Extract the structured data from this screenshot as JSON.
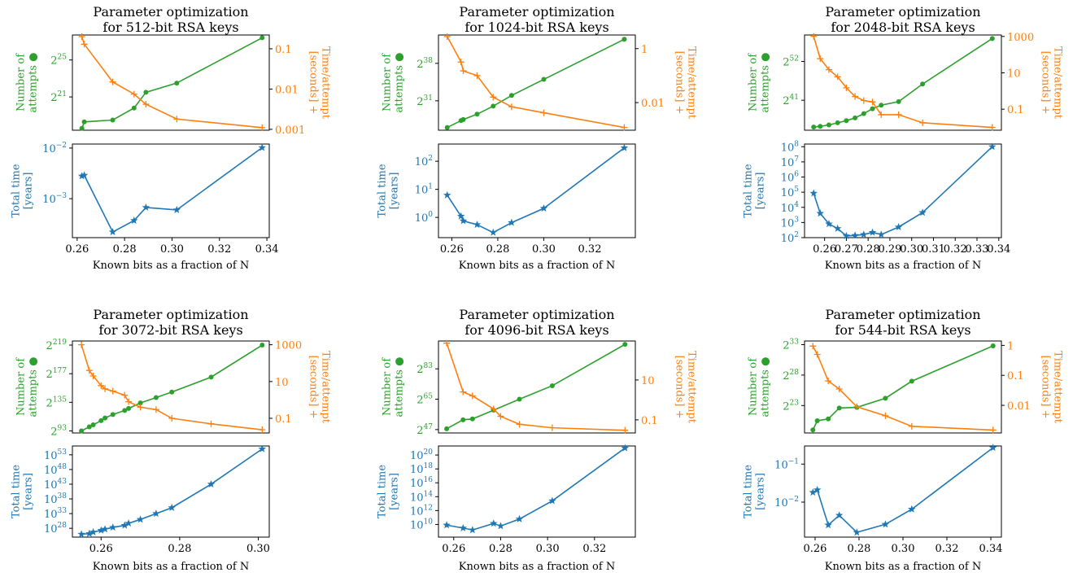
{
  "colors": {
    "attempts": "#2ca02c",
    "time_per_attempt": "#ff7f0e",
    "total_time": "#1f77b4",
    "axis": "#000000"
  },
  "chart_data": [
    {
      "type": "line",
      "title": "Parameter optimization\nfor 512-bit RSA keys",
      "xlabel": "Known bits as a fraction of N",
      "xlim": [
        0.258,
        0.341
      ],
      "xticks": [
        0.26,
        0.28,
        0.3,
        0.32,
        0.34
      ],
      "xtick_labels": [
        "0.26",
        "0.28",
        "0.30",
        "0.32",
        "0.34"
      ],
      "top": {
        "left_label": "Number of\nattempts ●",
        "left_scale": "log2",
        "left_ylim": [
          17.4,
          27.7
        ],
        "left_ticks": [
          21,
          25
        ],
        "left_tick_base": "2",
        "right_label": "Time/attempt\n[seconds] +",
        "right_scale": "log10",
        "right_ylim": [
          0.00095,
          0.22
        ],
        "right_ticks": [
          0.001,
          0.01,
          0.1
        ],
        "right_tick_labels": [
          "0.001",
          "0.01",
          "0.1"
        ],
        "attempts": {
          "x": [
            0.262,
            0.263,
            0.275,
            0.284,
            0.289,
            0.302,
            0.338
          ],
          "y": [
            17.6,
            18.3,
            18.5,
            19.8,
            21.5,
            22.5,
            27.4
          ]
        },
        "time_per_attempt": {
          "x": [
            0.262,
            0.263,
            0.275,
            0.284,
            0.289,
            0.302,
            0.338
          ],
          "y": [
            0.2,
            0.13,
            0.015,
            0.0075,
            0.0042,
            0.0018,
            0.0011
          ]
        }
      },
      "bottom": {
        "ylabel": "Total time\n[years]",
        "scale": "log10",
        "ylim": [
          0.00017,
          0.012
        ],
        "ticks": [
          0.001,
          0.01
        ],
        "tick_labels": [
          "10^-3",
          "10^-2"
        ],
        "total_time": {
          "x": [
            0.262,
            0.263,
            0.275,
            0.284,
            0.289,
            0.302,
            0.338
          ],
          "y": [
            0.0028,
            0.0029,
            0.00022,
            0.00037,
            0.00067,
            0.0006,
            0.0102
          ]
        }
      }
    },
    {
      "type": "line",
      "title": "Parameter optimization\nfor 1024-bit RSA keys",
      "xlabel": "Known bits as a fraction of N",
      "xlim": [
        0.2542,
        0.3398
      ],
      "xticks": [
        0.26,
        0.28,
        0.3,
        0.32
      ],
      "xtick_labels": [
        "0.26",
        "0.28",
        "0.30",
        "0.32"
      ],
      "top": {
        "left_label": "Number of\nattempts ●",
        "left_scale": "log2",
        "left_ylim": [
          25.5,
          43.3
        ],
        "left_ticks": [
          31,
          38
        ],
        "left_tick_base": "2",
        "right_label": "Time/attempt\n[seconds] +",
        "right_scale": "log10",
        "right_ylim": [
          0.00095,
          3.2
        ],
        "right_ticks": [
          0.01,
          1
        ],
        "right_tick_labels": [
          "0.01",
          "1"
        ],
        "attempts": {
          "x": [
            0.258,
            0.264,
            0.265,
            0.271,
            0.278,
            0.286,
            0.3,
            0.335
          ],
          "y": [
            26.0,
            27.3,
            27.5,
            28.5,
            30.0,
            32.0,
            35.0,
            42.5
          ]
        },
        "time_per_attempt": {
          "x": [
            0.258,
            0.264,
            0.265,
            0.271,
            0.278,
            0.286,
            0.3,
            0.335
          ],
          "y": [
            2.8,
            0.32,
            0.15,
            0.1,
            0.016,
            0.007,
            0.0042,
            0.0012
          ]
        }
      },
      "bottom": {
        "ylabel": "Total time\n[years]",
        "scale": "log10",
        "ylim": [
          0.19,
          410
        ],
        "ticks": [
          1,
          10,
          100
        ],
        "tick_labels": [
          "10^0",
          "10^1",
          "10^2"
        ],
        "total_time": {
          "x": [
            0.258,
            0.264,
            0.265,
            0.271,
            0.278,
            0.286,
            0.3,
            0.335
          ],
          "y": [
            6.2,
            1.1,
            0.75,
            0.55,
            0.29,
            0.65,
            2.1,
            300
          ]
        }
      }
    },
    {
      "type": "line",
      "title": "Parameter optimization\nfor 2048-bit RSA keys",
      "xlabel": "Known bits as a fraction of N",
      "xlim": [
        0.2508,
        0.3412
      ],
      "xticks": [
        0.26,
        0.27,
        0.28,
        0.29,
        0.3,
        0.31,
        0.32,
        0.33,
        0.34
      ],
      "xtick_labels": [
        "0.26",
        "0.27",
        "0.28",
        "0.29",
        "0.30",
        "0.31",
        "0.32",
        "0.33",
        "0.34"
      ],
      "top": {
        "left_label": "Number of\nattempts ●",
        "left_scale": "log2",
        "left_ylim": [
          32.5,
          59.5
        ],
        "left_ticks": [
          41,
          52
        ],
        "left_tick_base": "2",
        "right_label": "Time/attempt\n[seconds] +",
        "right_scale": "log10",
        "right_ylim": [
          0.007,
          1200
        ],
        "right_ticks": [
          0.1,
          10,
          1000
        ],
        "right_tick_labels": [
          "0.1",
          "10",
          "1000"
        ],
        "attempts": {
          "x": [
            0.255,
            0.258,
            0.262,
            0.266,
            0.27,
            0.274,
            0.278,
            0.282,
            0.286,
            0.294,
            0.305,
            0.337
          ],
          "y": [
            33.4,
            33.6,
            34.0,
            34.6,
            35.2,
            36.0,
            37.2,
            38.6,
            39.6,
            40.6,
            45.6,
            58.5
          ]
        },
        "time_per_attempt": {
          "x": [
            0.255,
            0.258,
            0.262,
            0.266,
            0.27,
            0.274,
            0.278,
            0.282,
            0.286,
            0.294,
            0.305,
            0.337
          ],
          "y": [
            1000,
            60,
            15,
            6,
            1.5,
            0.5,
            0.3,
            0.25,
            0.05,
            0.05,
            0.018,
            0.01
          ]
        }
      },
      "bottom": {
        "ylabel": "Total time\n[years]",
        "scale": "log10",
        "ylim": [
          100,
          150000000
        ],
        "ticks": [
          100,
          1000,
          10000,
          100000,
          1000000,
          10000000,
          100000000
        ],
        "tick_labels": [
          "10^2",
          "10^3",
          "10^4",
          "10^5",
          "10^6",
          "10^7",
          "10^8"
        ],
        "total_time": {
          "x": [
            0.255,
            0.258,
            0.262,
            0.266,
            0.27,
            0.274,
            0.278,
            0.282,
            0.286,
            0.294,
            0.305,
            0.337
          ],
          "y": [
            85000,
            4000,
            800,
            400,
            130,
            140,
            160,
            220,
            160,
            500,
            4500,
            100000000
          ]
        }
      }
    },
    {
      "type": "line",
      "title": "Parameter optimization\nfor 3072-bit RSA keys",
      "xlabel": "Known bits as a fraction of N",
      "xlim": [
        0.2527,
        0.3028
      ],
      "xticks": [
        0.26,
        0.28,
        0.3
      ],
      "xtick_labels": [
        "0.26",
        "0.28",
        "0.30"
      ],
      "top": {
        "left_label": "Number of\nattempts ●",
        "left_scale": "log2",
        "left_ylim": [
          90,
          225
        ],
        "left_ticks": [
          93,
          135,
          177,
          219
        ],
        "left_tick_base": "2",
        "right_label": "Time/attempt\n[seconds] +",
        "right_scale": "log10",
        "right_ylim": [
          0.016,
          1600
        ],
        "right_ticks": [
          0.1,
          10,
          1000
        ],
        "right_tick_labels": [
          "0.1",
          "10",
          "1000"
        ],
        "attempts": {
          "x": [
            0.255,
            0.257,
            0.258,
            0.26,
            0.261,
            0.263,
            0.266,
            0.267,
            0.27,
            0.274,
            0.278,
            0.288,
            0.301
          ],
          "y": [
            93,
            99,
            102,
            108,
            112,
            117,
            123,
            126,
            134,
            142,
            150,
            172,
            219
          ]
        },
        "time_per_attempt": {
          "x": [
            0.255,
            0.257,
            0.258,
            0.26,
            0.261,
            0.263,
            0.266,
            0.267,
            0.27,
            0.274,
            0.278,
            0.288,
            0.301
          ],
          "y": [
            1000,
            40,
            20,
            6,
            4,
            3,
            1.8,
            0.8,
            0.4,
            0.3,
            0.1,
            0.05,
            0.024
          ]
        }
      },
      "bottom": {
        "ylabel": "Total time\n[years]",
        "scale": "log10",
        "ylim": [
          1e+25,
          1e+56
        ],
        "ticks": [
          1e+28,
          1e+33,
          1e+38,
          1e+43,
          1e+48,
          1e+53
        ],
        "tick_labels": [
          "10^28",
          "10^33",
          "10^38",
          "10^43",
          "10^48",
          "10^53"
        ],
        "total_time": {
          "x": [
            0.255,
            0.257,
            0.258,
            0.26,
            0.261,
            0.263,
            0.266,
            0.267,
            0.27,
            0.274,
            0.278,
            0.288,
            0.301
          ],
          "y": [
            1e+26,
            1.5e+26,
            5e+26,
            2e+27,
            5e+27,
            2e+28,
            1e+29,
            5e+29,
            1e+31,
            1e+33,
            1e+35,
            1e+43,
            1e+55
          ]
        }
      }
    },
    {
      "type": "line",
      "title": "Parameter optimization\nfor 4096-bit RSA keys",
      "xlabel": "Known bits as a fraction of N",
      "xlim": [
        0.2535,
        0.3374
      ],
      "xticks": [
        0.26,
        0.28,
        0.3,
        0.32
      ],
      "xtick_labels": [
        "0.26",
        "0.28",
        "0.30",
        "0.32"
      ],
      "top": {
        "left_label": "Number of\nattempts ●",
        "left_scale": "log2",
        "left_ylim": [
          45,
          99.5
        ],
        "left_ticks": [
          47,
          65,
          83
        ],
        "left_tick_base": "2",
        "right_label": "Time/attempt\n[seconds] +",
        "right_scale": "log10",
        "right_ylim": [
          0.022,
          900
        ],
        "right_ticks": [
          0.1,
          10
        ],
        "right_tick_labels": [
          "0.1",
          "10"
        ],
        "attempts": {
          "x": [
            0.257,
            0.264,
            0.268,
            0.277,
            0.288,
            0.302,
            0.333
          ],
          "y": [
            47.5,
            52.8,
            53.3,
            58.5,
            65.0,
            73.0,
            97.5
          ]
        },
        "time_per_attempt": {
          "x": [
            0.257,
            0.264,
            0.268,
            0.277,
            0.28,
            0.288,
            0.302,
            0.333
          ],
          "y": [
            700,
            2.5,
            1.6,
            0.35,
            0.15,
            0.06,
            0.04,
            0.03
          ]
        }
      },
      "bottom": {
        "ylabel": "Total time\n[years]",
        "scale": "log10",
        "ylim": [
          150000000.0,
          2e+21
        ],
        "ticks": [
          10000000000.0,
          1000000000000.0,
          100000000000000.0,
          1e+16,
          1e+18,
          1e+20
        ],
        "tick_labels": [
          "10^10",
          "10^12",
          "10^14",
          "10^16",
          "10^18",
          "10^20"
        ],
        "total_time": {
          "x": [
            0.257,
            0.264,
            0.268,
            0.277,
            0.28,
            0.288,
            0.302,
            0.333
          ],
          "y": [
            8000000000.0,
            3000000000.0,
            1600000000.0,
            14000000000.0,
            6000000000.0,
            60000000000.0,
            25000000000000.0,
            1e+21
          ]
        }
      }
    },
    {
      "type": "line",
      "title": "Parameter optimization\nfor 544-bit RSA keys",
      "xlabel": "Known bits as a fraction of N",
      "xlim": [
        0.2552,
        0.3448
      ],
      "xticks": [
        0.26,
        0.28,
        0.3,
        0.32,
        0.34
      ],
      "xtick_labels": [
        "0.26",
        "0.28",
        "0.30",
        "0.32",
        "0.34"
      ],
      "top": {
        "left_label": "Number of\nattempts ●",
        "left_scale": "log2",
        "left_ylim": [
          18.5,
          33.6
        ],
        "left_ticks": [
          23,
          28,
          33
        ],
        "left_tick_base": "2",
        "right_label": "Time/attempt\n[seconds] +",
        "right_scale": "log10",
        "right_ylim": [
          0.0012,
          1.4
        ],
        "right_ticks": [
          0.01,
          0.1,
          1
        ],
        "right_tick_labels": [
          "0.01",
          "0.1",
          "1"
        ],
        "attempts": {
          "x": [
            0.259,
            0.261,
            0.266,
            0.271,
            0.279,
            0.292,
            0.304,
            0.341
          ],
          "y": [
            19.0,
            20.5,
            20.8,
            22.6,
            22.7,
            24.2,
            27.0,
            32.8
          ]
        },
        "time_per_attempt": {
          "x": [
            0.259,
            0.261,
            0.266,
            0.271,
            0.279,
            0.292,
            0.304,
            0.341
          ],
          "y": [
            0.95,
            0.5,
            0.065,
            0.035,
            0.009,
            0.0045,
            0.002,
            0.0015
          ]
        }
      },
      "bottom": {
        "ylabel": "Total time\n[years]",
        "scale": "log10",
        "ylim": [
          0.0012,
          0.3
        ],
        "ticks": [
          0.01,
          0.1
        ],
        "tick_labels": [
          "10^-2",
          "10^-1"
        ],
        "total_time": {
          "x": [
            0.259,
            0.261,
            0.266,
            0.271,
            0.279,
            0.292,
            0.304,
            0.341
          ],
          "y": [
            0.018,
            0.021,
            0.0025,
            0.0045,
            0.0016,
            0.0026,
            0.0065,
            0.27
          ]
        }
      }
    }
  ]
}
